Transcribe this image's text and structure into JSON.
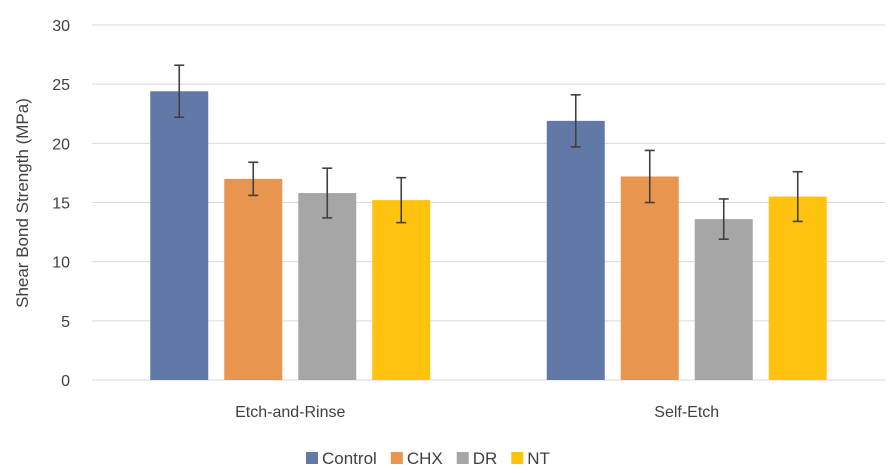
{
  "chart_data": {
    "type": "bar",
    "title": "",
    "xlabel": "",
    "ylabel": "Shear Bond Strength (MPa)",
    "ylim": [
      0,
      30
    ],
    "yticks": [
      0,
      5,
      10,
      15,
      20,
      25,
      30
    ],
    "grid": true,
    "legend_position": "bottom",
    "categories": [
      "Etch-and-Rinse",
      "Self-Etch"
    ],
    "series": [
      {
        "name": "Control",
        "color": "#6279a8",
        "values": [
          24.4,
          21.9
        ],
        "errors": [
          2.2,
          2.2
        ]
      },
      {
        "name": "CHX",
        "color": "#e8964f",
        "values": [
          17.0,
          17.2
        ],
        "errors": [
          1.4,
          2.2
        ]
      },
      {
        "name": "DR",
        "color": "#a6a6a6",
        "values": [
          15.8,
          13.6
        ],
        "errors": [
          2.1,
          1.7
        ]
      },
      {
        "name": "NT",
        "color": "#ffc20e",
        "values": [
          15.2,
          15.5
        ],
        "errors": [
          1.9,
          2.1
        ]
      }
    ]
  }
}
